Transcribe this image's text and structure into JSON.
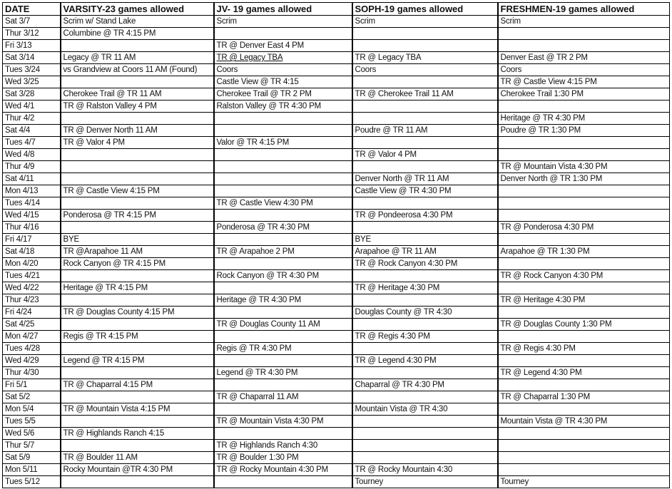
{
  "headers": [
    "DATE",
    "VARSITY-23 games allowed",
    "JV- 19 games allowed",
    "SOPH-19 games allowed",
    "FRESHMEN-19 games allowed"
  ],
  "underlined_cells": [
    {
      "row": 3,
      "col": 2
    }
  ],
  "rows": [
    [
      "Sat 3/7",
      "Scrim w/ Stand Lake",
      "Scrim",
      "Scrim",
      "Scrim"
    ],
    [
      "Thur 3/12",
      "Columbine @ TR 4:15 PM",
      "",
      "",
      ""
    ],
    [
      "Fri 3/13",
      "",
      "TR @ Denver East 4 PM",
      "",
      ""
    ],
    [
      "Sat 3/14",
      "Legacy @ TR 11 AM",
      "TR @ Legacy TBA",
      "TR @ Legacy TBA",
      "Denver East @ TR 2 PM"
    ],
    [
      "Tues 3/24",
      "vs Grandview at Coors 11 AM (Found)",
      "Coors",
      "Coors",
      "Coors"
    ],
    [
      "Wed 3/25",
      "",
      "Castle View @ TR 4:15",
      "",
      "TR @ Castle View 4:15 PM"
    ],
    [
      "Sat 3/28",
      "Cherokee Trail @ TR 11 AM",
      "Cherokee Trail @ TR 2 PM",
      "TR @ Cherokee Trail 11 AM",
      "Cherokee Trail 1:30 PM"
    ],
    [
      "Wed 4/1",
      "TR @ Ralston Valley 4 PM",
      "Ralston Valley @ TR 4:30 PM",
      "",
      ""
    ],
    [
      "Thur 4/2",
      "",
      "",
      "",
      "Heritage @ TR 4:30 PM"
    ],
    [
      "Sat 4/4",
      "TR @ Denver North 11 AM",
      "",
      "Poudre @ TR 11 AM",
      "Poudre @ TR 1:30 PM"
    ],
    [
      "Tues 4/7",
      "TR @ Valor 4 PM",
      "Valor @ TR 4:15 PM",
      "",
      ""
    ],
    [
      "Wed 4/8",
      "",
      "",
      "TR @ Valor 4 PM",
      ""
    ],
    [
      "Thur 4/9",
      "",
      "",
      "",
      "TR @ Mountain Vista 4:30 PM"
    ],
    [
      "Sat 4/11",
      "",
      "",
      "Denver North @ TR 11 AM",
      "Denver North @ TR 1:30 PM"
    ],
    [
      "Mon 4/13",
      "TR @ Castle View 4:15 PM",
      "",
      "Castle View @ TR 4:30 PM",
      ""
    ],
    [
      "Tues 4/14",
      "",
      "TR @ Castle View 4:30 PM",
      "",
      ""
    ],
    [
      "Wed 4/15",
      "Ponderosa @ TR 4:15 PM",
      "",
      "TR @ Pondeerosa 4:30 PM",
      ""
    ],
    [
      "Thur 4/16",
      "",
      "Ponderosa @ TR 4:30 PM",
      "",
      "TR @ Ponderosa 4:30 PM"
    ],
    [
      "Fri 4/17",
      "BYE",
      "",
      "BYE",
      ""
    ],
    [
      "Sat 4/18",
      "TR @Arapahoe 11 AM",
      "TR @ Arapahoe 2 PM",
      "Arapahoe @ TR 11 AM",
      "Arapahoe @ TR 1:30 PM"
    ],
    [
      "Mon 4/20",
      "Rock Canyon @ TR 4:15 PM",
      "",
      "TR @ Rock Canyon 4:30 PM",
      ""
    ],
    [
      "Tues 4/21",
      "",
      "Rock Canyon @ TR 4:30 PM",
      "",
      "TR @ Rock Canyon 4:30 PM"
    ],
    [
      "Wed 4/22",
      "Heritage @ TR 4:15 PM",
      "",
      "TR @ Heritage 4:30 PM",
      ""
    ],
    [
      "Thur 4/23",
      "",
      "Heritage @ TR 4:30 PM",
      "",
      "TR @ Heritage 4:30 PM"
    ],
    [
      "Fri 4/24",
      "TR @ Douglas County 4:15 PM",
      "",
      "Douglas County @ TR 4:30",
      ""
    ],
    [
      "Sat 4/25",
      "",
      "TR @ Douglas County 11 AM",
      "",
      "TR @ Douglas County 1:30 PM"
    ],
    [
      "Mon 4/27",
      "Regis @ TR 4:15 PM",
      "",
      "TR @ Regis 4:30 PM",
      ""
    ],
    [
      "Tues 4/28",
      "",
      "Regis @ TR 4:30 PM",
      "",
      "TR @ Regis 4:30 PM"
    ],
    [
      "Wed 4/29",
      "Legend @ TR 4:15 PM",
      "",
      "TR @ Legend 4:30 PM",
      ""
    ],
    [
      "Thur 4/30",
      "",
      "Legend @ TR 4:30 PM",
      "",
      "TR @ Legend 4:30 PM"
    ],
    [
      "Fri 5/1",
      "TR @ Chaparral 4:15 PM",
      "",
      "Chaparral @ TR 4:30 PM",
      ""
    ],
    [
      "Sat 5/2",
      "",
      "TR @ Chaparral 11 AM",
      "",
      "TR @ Chaparral 1:30 PM"
    ],
    [
      "Mon 5/4",
      "TR @ Mountain Vista 4:15 PM",
      "",
      "Mountain Vista @ TR 4:30",
      ""
    ],
    [
      "Tues 5/5",
      "",
      "TR @ Mountain Vista 4:30 PM",
      "",
      "Mountain Vista @ TR 4:30 PM"
    ],
    [
      "Wed 5/6",
      "TR @ Highlands Ranch 4:15",
      "",
      "",
      ""
    ],
    [
      "Thur 5/7",
      "",
      "TR @ Highlands Ranch 4:30",
      "",
      ""
    ],
    [
      "Sat 5/9",
      "TR @ Boulder 11 AM",
      "TR @ Boulder 1:30 PM",
      "",
      ""
    ],
    [
      "Mon 5/11",
      "Rocky Mountain @TR 4:30 PM",
      "TR @ Rocky Mountain 4:30 PM",
      "TR @ Rocky Mountain 4:30",
      ""
    ],
    [
      "Tues 5/12",
      "",
      "",
      "Tourney",
      "Tourney"
    ]
  ]
}
